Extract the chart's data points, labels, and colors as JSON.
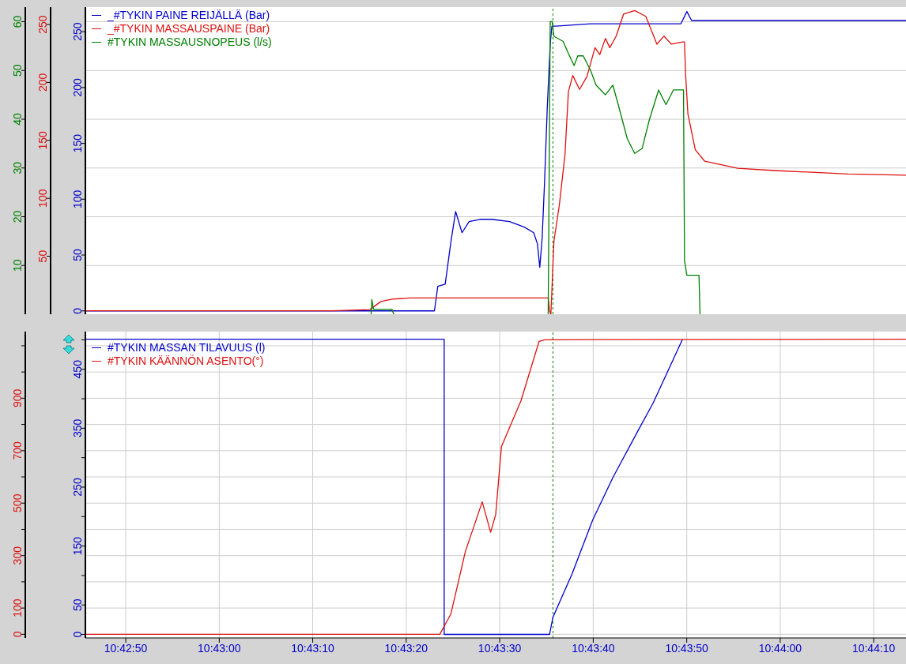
{
  "chart_data": [
    {
      "type": "line",
      "xlim": [
        10.71269,
        10.73707
      ],
      "xticks": [
        {
          "value": 10.713889,
          "label": null
        },
        {
          "value": 10.716667,
          "label": null
        },
        {
          "value": 10.719444,
          "label": null
        },
        {
          "value": 10.722222,
          "label": null
        },
        {
          "value": 10.725,
          "label": null
        },
        {
          "value": 10.727778,
          "label": null
        },
        {
          "value": 10.730556,
          "label": null
        },
        {
          "value": 10.733333,
          "label": null
        },
        {
          "value": 10.736111,
          "label": null
        }
      ],
      "ylim": [
        -3,
        272
      ],
      "yticks": [
        0,
        50,
        100,
        150,
        200,
        250
      ],
      "y2lim": [
        0,
        265
      ],
      "y2ticks": [
        50,
        100,
        150,
        200,
        250
      ],
      "y3lim": [
        0,
        63
      ],
      "y3ticks": [
        10,
        20,
        30,
        40,
        50,
        60
      ],
      "grid": true,
      "legend": "top left",
      "tick_labels": "y",
      "ref_lines": [
        {
          "axis": "x",
          "value": 10.72658,
          "color": "#008000",
          "line_style": "dashed"
        }
      ],
      "series": [
        {
          "name": "_#TYKIN PAINE REIJÄLLÄ (Bar)",
          "color": "#0000cc",
          "x": [
            10.71269,
            10.72306,
            10.72316,
            10.72338,
            10.72355,
            10.72369,
            10.72388,
            10.72409,
            10.72442,
            10.72475,
            10.72529,
            10.72573,
            10.72601,
            10.72612,
            10.72619,
            10.72626,
            10.72633,
            10.72641,
            10.7265,
            10.72655,
            10.72666,
            10.7277,
            10.72934,
            10.73038,
            10.73056,
            10.7307,
            10.73098,
            10.73707
          ],
          "values": [
            0,
            0,
            22,
            24,
            62,
            89,
            70,
            80,
            82,
            82,
            80,
            75,
            70,
            60,
            39,
            65,
            114,
            180,
            239,
            255,
            255,
            257,
            257,
            257,
            268,
            260,
            260,
            260
          ]
        },
        {
          "name": "_#TYKIN MASSAUSPAINE (Bar)",
          "color": "#dd1111",
          "axis": "y2",
          "x": [
            10.71269,
            10.72005,
            10.72114,
            10.72147,
            10.7218,
            10.72234,
            10.72644,
            10.72648,
            10.72652,
            10.72661,
            10.72677,
            10.72694,
            10.72704,
            10.72717,
            10.72737,
            10.72759,
            10.72783,
            10.72797,
            10.72814,
            10.72827,
            10.72846,
            10.72868,
            10.72901,
            10.72934,
            10.72967,
            10.72988,
            10.7301,
            10.73043,
            10.73049,
            10.73052,
            10.73059,
            10.73081,
            10.73109,
            10.73207,
            10.73316,
            10.73535,
            10.73707
          ],
          "values": [
            3,
            3,
            4,
            11,
            13,
            14,
            14,
            3,
            0,
            63,
            94,
            138,
            192,
            206,
            194,
            205,
            230,
            224,
            238,
            230,
            240,
            259,
            262,
            257,
            233,
            240,
            233,
            235,
            235,
            208,
            173,
            142,
            132,
            126,
            124,
            121,
            120
          ]
        },
        {
          "name": "#TYKIN MASSAUSNOPEUS (l/s)",
          "color": "#008000",
          "axis": "y3",
          "x": [
            10.72118,
            10.7212,
            10.72125,
            10.7218,
            10.72185,
            10.724,
            10.72644,
            10.7265,
            10.72656,
            10.72661,
            10.72688,
            10.72704,
            10.72721,
            10.72732,
            10.72748,
            10.7277,
            10.72786,
            10.72814,
            10.72836,
            10.72852,
            10.72879,
            10.72901,
            10.72923,
            10.72945,
            10.72972,
            10.72994,
            10.73016,
            10.73046,
            10.73049,
            10.73056,
            10.73092,
            10.73095
          ],
          "values": [
            0,
            3,
            1,
            1,
            0,
            null,
            0,
            60,
            60,
            57,
            56,
            53.5,
            51,
            53,
            53,
            50,
            47,
            45,
            47,
            43,
            36,
            33,
            34,
            40,
            46,
            43,
            46,
            46,
            11,
            8,
            8,
            0
          ]
        }
      ]
    },
    {
      "type": "line",
      "xlim": [
        10.71269,
        10.73707
      ],
      "xticks": [
        {
          "value": 10.713889,
          "label": "10:42:50"
        },
        {
          "value": 10.716667,
          "label": "10:43:00"
        },
        {
          "value": 10.719444,
          "label": "10:43:10"
        },
        {
          "value": 10.722222,
          "label": "10:43:20"
        },
        {
          "value": 10.725,
          "label": "10:43:30"
        },
        {
          "value": 10.727778,
          "label": "10:43:40"
        },
        {
          "value": 10.730556,
          "label": "10:43:50"
        },
        {
          "value": 10.733333,
          "label": "10:44:00"
        },
        {
          "value": 10.736111,
          "label": "10:44:10"
        }
      ],
      "ylim": [
        -6,
        514
      ],
      "yticks": [
        0,
        50,
        {
          "value": 100,
          "label": null
        },
        150,
        {
          "value": 200,
          "label": null
        },
        250,
        {
          "value": 300,
          "label": null
        },
        350,
        {
          "value": 400,
          "label": null
        },
        450,
        {
          "value": 500,
          "label": null
        }
      ],
      "y2lim": [
        -14,
        1154
      ],
      "y2ticks": [
        0,
        100,
        {
          "value": 200,
          "label": null
        },
        300,
        {
          "value": 400,
          "label": null
        },
        500,
        {
          "value": 600,
          "label": null
        },
        700,
        {
          "value": 800,
          "label": null
        },
        900,
        {
          "value": 1000,
          "label": null
        },
        {
          "value": 1100,
          "label": null
        }
      ],
      "grid": true,
      "legend": "top left",
      "ref_lines": [
        {
          "axis": "x",
          "value": 10.72658,
          "color": "#008000",
          "line_style": "dashed"
        }
      ],
      "series": [
        {
          "name": "#TYKIN MASSAN TILAVUUS (l)",
          "color": "#0000cc",
          "x": [
            10.71269,
            10.72335,
            10.72335,
            10.72648,
            10.72658,
            10.72715,
            10.72776,
            10.72836,
            10.72912,
            10.72956,
            10.73043
          ],
          "values": [
            501,
            501,
            0,
            0,
            29,
            103,
            194,
            266,
            347,
            393,
            501
          ]
        },
        {
          "name": "#TYKIN KÄÄNNÖN ASENTO(°)",
          "color": "#dd1111",
          "axis": "y2",
          "x": [
            10.71269,
            10.72322,
            10.72355,
            10.72398,
            10.72448,
            10.72473,
            10.72488,
            10.72505,
            10.72563,
            10.72617,
            10.72634,
            10.73707
          ],
          "values": [
            0,
            0,
            78,
            316,
            505,
            389,
            456,
            715,
            890,
            1117,
            1123,
            1125
          ]
        }
      ]
    }
  ]
}
